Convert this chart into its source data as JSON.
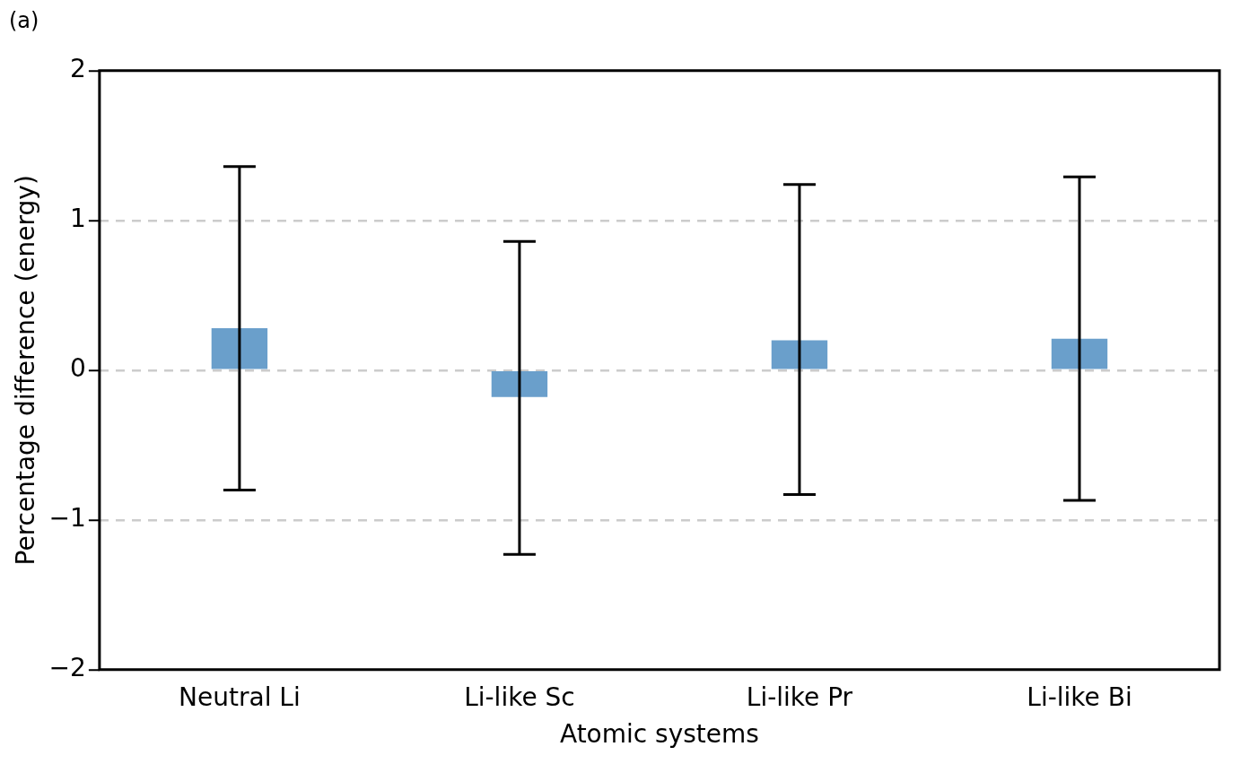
{
  "chart_data": {
    "type": "bar",
    "title": "(a)",
    "xlabel": "Atomic systems",
    "ylabel": "Percentage difference (energy)",
    "categories": [
      "Neutral Li",
      "Li-like Sc",
      "Li-like Pr",
      "Li-like Bi"
    ],
    "values": [
      0.28,
      -0.18,
      0.2,
      0.21
    ],
    "color": "#6a9fcb",
    "errors": [
      [
        -0.8,
        1.36
      ],
      [
        -1.23,
        0.86
      ],
      [
        -0.83,
        1.24
      ],
      [
        -0.87,
        1.29
      ]
    ],
    "ylim": [
      -2,
      2
    ],
    "yticks": [
      {
        "value": -2,
        "label": "−2"
      },
      {
        "value": -1,
        "label": "−1"
      },
      0,
      1,
      2
    ],
    "grid": "y",
    "legend": false
  }
}
